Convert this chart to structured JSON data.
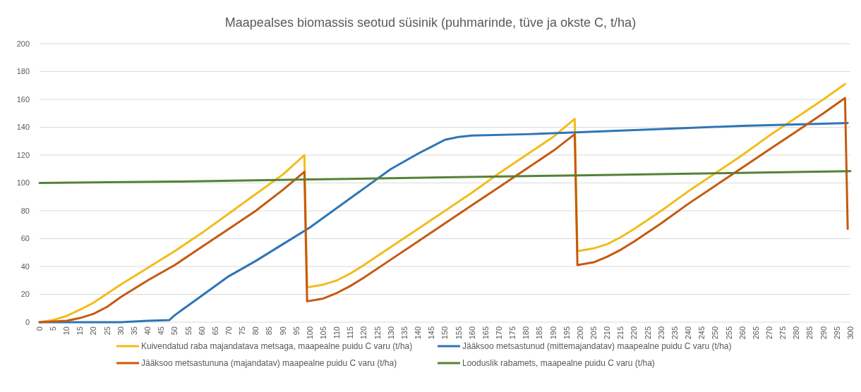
{
  "chart_data": {
    "type": "line",
    "title": "Maapealses biomassis seotud süsinik (puhmarinde, tüve ja okste C, t/ha)",
    "xlim": [
      0,
      300
    ],
    "xticks": [
      0,
      5,
      10,
      15,
      20,
      25,
      30,
      35,
      40,
      45,
      50,
      55,
      60,
      65,
      70,
      75,
      80,
      85,
      90,
      95,
      100,
      105,
      110,
      115,
      120,
      125,
      130,
      135,
      140,
      145,
      150,
      155,
      160,
      165,
      170,
      175,
      180,
      185,
      190,
      195,
      200,
      205,
      210,
      215,
      220,
      225,
      230,
      235,
      240,
      245,
      250,
      255,
      260,
      265,
      270,
      275,
      280,
      285,
      290,
      295,
      300
    ],
    "ylim": [
      0,
      200
    ],
    "yticks": [
      0,
      20,
      40,
      60,
      80,
      100,
      120,
      140,
      160,
      180,
      200
    ],
    "grid": "y",
    "legend": "bottom",
    "marker": "none",
    "line_style": "solid",
    "series": [
      {
        "name": "Kuivendatud raba majandatava metsaga, maapealne puidu C varu (t/ha)",
        "color": "#f2bc1a",
        "x": [
          0,
          5,
          10,
          15,
          20,
          30,
          40,
          50,
          60,
          70,
          80,
          90,
          98,
          99,
          105,
          110,
          115,
          120,
          130,
          140,
          150,
          160,
          170,
          180,
          190,
          198,
          199,
          205,
          210,
          215,
          220,
          230,
          240,
          250,
          260,
          270,
          280,
          290,
          298
        ],
        "values": [
          0,
          1.5,
          4.5,
          9,
          14,
          27,
          39,
          51,
          64,
          78,
          92,
          106,
          120,
          25,
          27,
          30,
          35,
          41,
          54,
          67,
          80,
          93,
          107,
          120,
          133,
          146,
          51,
          53,
          56,
          61,
          67,
          80,
          94,
          107,
          120,
          134,
          147,
          160,
          171
        ]
      },
      {
        "name": "Jääksoo metsastunud (mittemajandatav) maapealne puidu C varu (t/ha)",
        "color": "#2e75b6",
        "x": [
          0,
          30,
          40,
          48,
          50,
          60,
          70,
          80,
          90,
          100,
          110,
          120,
          125,
          130,
          140,
          145,
          150,
          155,
          160,
          180,
          200,
          220,
          240,
          260,
          280,
          299
        ],
        "values": [
          0,
          0,
          1,
          1.5,
          5,
          19,
          33,
          44,
          56,
          68,
          82,
          96,
          103,
          110,
          121,
          126,
          131,
          133,
          134,
          135,
          136.5,
          138,
          139.5,
          141,
          142,
          143
        ]
      },
      {
        "name": "Jääksoo metsastununa (majandatav) maapealne puidu C varu (t/ha)",
        "color": "#c55a11",
        "x": [
          0,
          10,
          15,
          20,
          25,
          30,
          40,
          50,
          60,
          70,
          80,
          90,
          98,
          99,
          105,
          110,
          115,
          120,
          130,
          140,
          150,
          160,
          170,
          180,
          190,
          198,
          199,
          205,
          210,
          215,
          220,
          230,
          240,
          250,
          260,
          270,
          280,
          290,
          298,
          299
        ],
        "values": [
          0,
          1,
          3,
          6,
          11,
          18,
          30,
          41,
          54,
          67,
          80,
          95,
          108,
          15,
          17,
          21,
          26,
          32,
          45,
          58,
          71,
          84,
          97,
          110,
          123,
          135,
          41,
          43,
          47,
          52,
          58,
          71,
          85,
          98,
          111,
          124,
          137,
          150,
          161,
          67
        ]
      },
      {
        "name": "Looduslik rabamets, maapealne puidu C varu (t/ha)",
        "color": "#548235",
        "x": [
          0,
          50,
          100,
          150,
          200,
          250,
          300
        ],
        "values": [
          100,
          101,
          102.5,
          104,
          105.5,
          107,
          108.5
        ]
      }
    ]
  }
}
